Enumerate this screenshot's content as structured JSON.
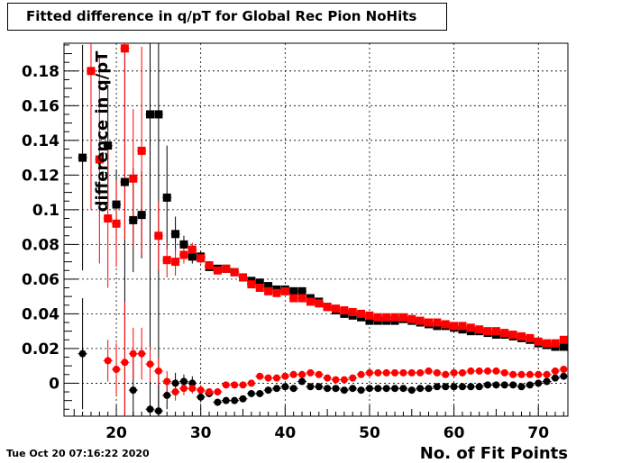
{
  "chart_data": {
    "type": "scatter",
    "title": "Fitted difference in q/pT for Global Rec Pion NoHits",
    "xlabel": "No. of Fit Points",
    "ylabel": "difference in q/pT",
    "xlim": [
      13.8,
      73.5
    ],
    "ylim": [
      -0.019,
      0.196
    ],
    "x_ticks": [
      20,
      30,
      40,
      50,
      60,
      70
    ],
    "y_ticks": [
      0,
      0.02,
      0.04,
      0.06,
      0.08,
      0.1,
      0.12,
      0.14,
      0.16,
      0.18
    ],
    "y_tick_labels": [
      "0",
      "0.02",
      "0.04",
      "0.06",
      "0.08",
      "0.1",
      "0.12",
      "0.14",
      "0.16",
      "0.18"
    ],
    "grid": true,
    "legend": "none",
    "series": [
      {
        "marker": "square",
        "color": "#000000",
        "points": [
          [
            16,
            0.13,
            0.065
          ],
          [
            19,
            0.137,
            0.035
          ],
          [
            20,
            0.103,
            0.02
          ],
          [
            21,
            0.116,
            0.15
          ],
          [
            22,
            0.094,
            0.03
          ],
          [
            23,
            0.097,
            0.025
          ],
          [
            24,
            0.155,
            0.17
          ],
          [
            25,
            0.155,
            0.17
          ],
          [
            26,
            0.107,
            0.03
          ],
          [
            27,
            0.086,
            0.01
          ],
          [
            28,
            0.08,
            0.005
          ],
          [
            29,
            0.073,
            0.004
          ],
          [
            30,
            0.073,
            0.003
          ],
          [
            31,
            0.067,
            0.002
          ],
          [
            32,
            0.066,
            0.002
          ],
          [
            33,
            0.066,
            0
          ],
          [
            34,
            0.064,
            0
          ],
          [
            35,
            0.061,
            0
          ],
          [
            36,
            0.059,
            0
          ],
          [
            37,
            0.058,
            0
          ],
          [
            38,
            0.056,
            0
          ],
          [
            39,
            0.054,
            0
          ],
          [
            40,
            0.054,
            0
          ],
          [
            41,
            0.053,
            0
          ],
          [
            42,
            0.053,
            0
          ],
          [
            43,
            0.049,
            0
          ],
          [
            44,
            0.047,
            0
          ],
          [
            45,
            0.044,
            0
          ],
          [
            46,
            0.042,
            0
          ],
          [
            47,
            0.04,
            0
          ],
          [
            48,
            0.039,
            0
          ],
          [
            49,
            0.038,
            0
          ],
          [
            50,
            0.036,
            0
          ],
          [
            51,
            0.036,
            0
          ],
          [
            52,
            0.036,
            0
          ],
          [
            53,
            0.036,
            0
          ],
          [
            54,
            0.037,
            0
          ],
          [
            55,
            0.036,
            0
          ],
          [
            56,
            0.035,
            0
          ],
          [
            57,
            0.034,
            0
          ],
          [
            58,
            0.033,
            0
          ],
          [
            59,
            0.033,
            0
          ],
          [
            60,
            0.032,
            0
          ],
          [
            61,
            0.031,
            0
          ],
          [
            62,
            0.03,
            0
          ],
          [
            63,
            0.03,
            0
          ],
          [
            64,
            0.029,
            0
          ],
          [
            65,
            0.028,
            0
          ],
          [
            66,
            0.028,
            0
          ],
          [
            67,
            0.027,
            0
          ],
          [
            68,
            0.026,
            0
          ],
          [
            69,
            0.025,
            0
          ],
          [
            70,
            0.023,
            0
          ],
          [
            71,
            0.022,
            0
          ],
          [
            72,
            0.021,
            0
          ],
          [
            73,
            0.021,
            0
          ]
        ]
      },
      {
        "marker": "square",
        "color": "#ff0000",
        "points": [
          [
            17,
            0.18,
            0.08
          ],
          [
            18,
            0.129,
            0.06
          ],
          [
            19,
            0.095,
            0.04
          ],
          [
            20,
            0.092,
            0.025
          ],
          [
            21,
            0.193,
            0.11
          ],
          [
            22,
            0.118,
            0.04
          ],
          [
            23,
            0.134,
            0.06
          ],
          [
            25,
            0.085,
            0.02
          ],
          [
            26,
            0.071,
            0.01
          ],
          [
            27,
            0.07,
            0.008
          ],
          [
            28,
            0.074,
            0.005
          ],
          [
            29,
            0.077,
            0.004
          ],
          [
            30,
            0.072,
            0.003
          ],
          [
            31,
            0.068,
            0.002
          ],
          [
            32,
            0.065,
            0.002
          ],
          [
            33,
            0.066,
            0
          ],
          [
            34,
            0.064,
            0
          ],
          [
            35,
            0.061,
            0
          ],
          [
            36,
            0.057,
            0
          ],
          [
            37,
            0.055,
            0
          ],
          [
            38,
            0.053,
            0
          ],
          [
            39,
            0.052,
            0
          ],
          [
            40,
            0.053,
            0
          ],
          [
            41,
            0.049,
            0
          ],
          [
            42,
            0.049,
            0
          ],
          [
            43,
            0.047,
            0
          ],
          [
            44,
            0.046,
            0
          ],
          [
            45,
            0.044,
            0
          ],
          [
            46,
            0.043,
            0
          ],
          [
            47,
            0.042,
            0
          ],
          [
            48,
            0.041,
            0
          ],
          [
            49,
            0.04,
            0
          ],
          [
            50,
            0.039,
            0
          ],
          [
            51,
            0.038,
            0
          ],
          [
            52,
            0.038,
            0
          ],
          [
            53,
            0.038,
            0
          ],
          [
            54,
            0.038,
            0
          ],
          [
            55,
            0.037,
            0
          ],
          [
            56,
            0.036,
            0
          ],
          [
            57,
            0.035,
            0
          ],
          [
            58,
            0.035,
            0
          ],
          [
            59,
            0.034,
            0
          ],
          [
            60,
            0.033,
            0
          ],
          [
            61,
            0.033,
            0
          ],
          [
            62,
            0.032,
            0
          ],
          [
            63,
            0.031,
            0
          ],
          [
            64,
            0.03,
            0
          ],
          [
            65,
            0.03,
            0
          ],
          [
            66,
            0.029,
            0
          ],
          [
            67,
            0.028,
            0
          ],
          [
            68,
            0.027,
            0
          ],
          [
            69,
            0.026,
            0
          ],
          [
            70,
            0.024,
            0
          ],
          [
            71,
            0.023,
            0
          ],
          [
            72,
            0.023,
            0
          ],
          [
            73,
            0.025,
            0
          ]
        ]
      },
      {
        "marker": "circle",
        "color": "#000000",
        "points": [
          [
            16,
            0.017,
            0.032
          ],
          [
            22,
            -0.004,
            0.02
          ],
          [
            24,
            -0.015,
            0.03
          ],
          [
            25,
            -0.016,
            0.02
          ],
          [
            26,
            -0.007,
            0.008
          ],
          [
            27,
            0.0,
            0.006
          ],
          [
            28,
            0.001,
            0.004
          ],
          [
            29,
            0.0,
            0.004
          ],
          [
            30,
            -0.008,
            0.003
          ],
          [
            31,
            -0.006,
            0.002
          ],
          [
            32,
            -0.011,
            0.002
          ],
          [
            33,
            -0.01,
            0.002
          ],
          [
            34,
            -0.01,
            0
          ],
          [
            35,
            -0.009,
            0
          ],
          [
            36,
            -0.006,
            0
          ],
          [
            37,
            -0.006,
            0
          ],
          [
            38,
            -0.004,
            0
          ],
          [
            39,
            -0.003,
            0
          ],
          [
            40,
            -0.002,
            0
          ],
          [
            41,
            -0.003,
            0
          ],
          [
            42,
            0.001,
            0
          ],
          [
            43,
            -0.002,
            0
          ],
          [
            44,
            -0.002,
            0
          ],
          [
            45,
            -0.003,
            0
          ],
          [
            46,
            -0.003,
            0
          ],
          [
            47,
            -0.004,
            0
          ],
          [
            48,
            -0.003,
            0
          ],
          [
            49,
            -0.004,
            0
          ],
          [
            50,
            -0.003,
            0
          ],
          [
            51,
            -0.003,
            0
          ],
          [
            52,
            -0.003,
            0
          ],
          [
            53,
            -0.003,
            0
          ],
          [
            54,
            -0.003,
            0
          ],
          [
            55,
            -0.004,
            0
          ],
          [
            56,
            -0.003,
            0
          ],
          [
            57,
            -0.003,
            0
          ],
          [
            58,
            -0.002,
            0
          ],
          [
            59,
            -0.002,
            0
          ],
          [
            60,
            -0.002,
            0
          ],
          [
            61,
            -0.002,
            0
          ],
          [
            62,
            -0.002,
            0
          ],
          [
            63,
            -0.002,
            0
          ],
          [
            64,
            -0.001,
            0
          ],
          [
            65,
            -0.001,
            0
          ],
          [
            66,
            -0.001,
            0
          ],
          [
            67,
            -0.001,
            0
          ],
          [
            68,
            -0.002,
            0
          ],
          [
            69,
            -0.001,
            0
          ],
          [
            70,
            0.0,
            0
          ],
          [
            71,
            0.001,
            0
          ],
          [
            72,
            0.003,
            0
          ],
          [
            73,
            0.004,
            0
          ]
        ]
      },
      {
        "marker": "circle",
        "color": "#ff0000",
        "points": [
          [
            19,
            0.013,
            0.012
          ],
          [
            20,
            0.008,
            0.015
          ],
          [
            21,
            0.012,
            0.035
          ],
          [
            22,
            0.017,
            0.015
          ],
          [
            23,
            0.017,
            0.015
          ],
          [
            24,
            0.011,
            0.01
          ],
          [
            25,
            0.007,
            0.008
          ],
          [
            26,
            0.001,
            0.006
          ],
          [
            27,
            -0.005,
            0.005
          ],
          [
            28,
            -0.003,
            0.004
          ],
          [
            29,
            -0.003,
            0.003
          ],
          [
            30,
            -0.004,
            0.003
          ],
          [
            31,
            -0.005,
            0.002
          ],
          [
            32,
            -0.005,
            0.002
          ],
          [
            33,
            -0.001,
            0
          ],
          [
            34,
            -0.001,
            0
          ],
          [
            35,
            -0.001,
            0
          ],
          [
            36,
            0.0,
            0
          ],
          [
            37,
            0.004,
            0
          ],
          [
            38,
            0.003,
            0
          ],
          [
            39,
            0.003,
            0
          ],
          [
            40,
            0.004,
            0
          ],
          [
            41,
            0.005,
            0
          ],
          [
            42,
            0.005,
            0
          ],
          [
            43,
            0.006,
            0
          ],
          [
            44,
            0.005,
            0
          ],
          [
            45,
            0.003,
            0
          ],
          [
            46,
            0.002,
            0
          ],
          [
            47,
            0.002,
            0
          ],
          [
            48,
            0.003,
            0
          ],
          [
            49,
            0.005,
            0
          ],
          [
            50,
            0.006,
            0
          ],
          [
            51,
            0.006,
            0
          ],
          [
            52,
            0.006,
            0
          ],
          [
            53,
            0.006,
            0
          ],
          [
            54,
            0.006,
            0
          ],
          [
            55,
            0.006,
            0
          ],
          [
            56,
            0.006,
            0
          ],
          [
            57,
            0.007,
            0
          ],
          [
            58,
            0.006,
            0
          ],
          [
            59,
            0.005,
            0
          ],
          [
            60,
            0.006,
            0
          ],
          [
            61,
            0.006,
            0
          ],
          [
            62,
            0.007,
            0
          ],
          [
            63,
            0.007,
            0
          ],
          [
            64,
            0.007,
            0
          ],
          [
            65,
            0.007,
            0
          ],
          [
            66,
            0.006,
            0
          ],
          [
            67,
            0.005,
            0
          ],
          [
            68,
            0.005,
            0
          ],
          [
            69,
            0.005,
            0
          ],
          [
            70,
            0.005,
            0
          ],
          [
            71,
            0.005,
            0
          ],
          [
            72,
            0.007,
            0
          ],
          [
            73,
            0.008,
            0
          ]
        ]
      }
    ]
  },
  "footer": {
    "timestamp": "Tue Oct 20 07:16:22 2020"
  }
}
